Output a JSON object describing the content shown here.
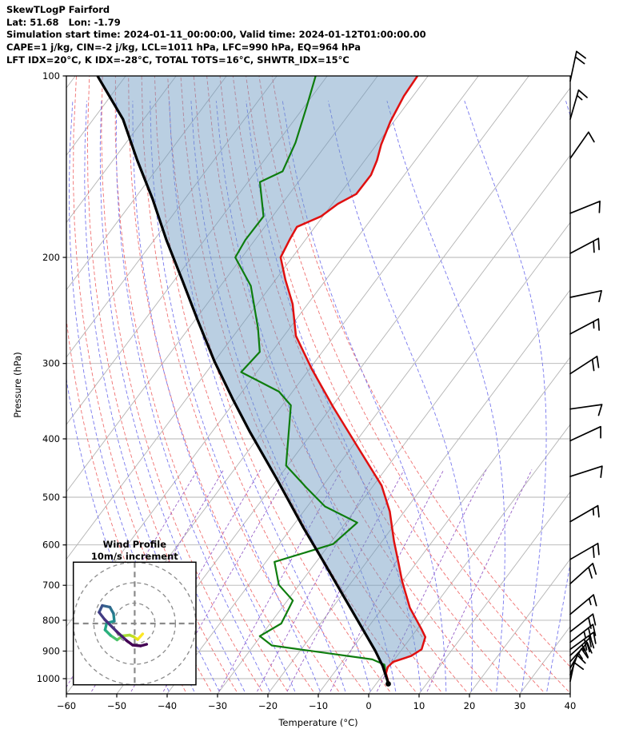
{
  "header": {
    "title": "SkewTLogP Fairford",
    "location_line": "Lat: 51.68   Lon: -1.79",
    "time_line": "Simulation start time: 2024-01-11_00:00:00, Valid time: 2024-01-12T01:00:00.00",
    "cape_line": "CAPE=1 j/kg, CIN=-2 j/kg, LCL=1011 hPa, LFC=990 hPa, EQ=964 hPa",
    "index_line": "LFT IDX=20°C, K IDX=-28°C, TOTAL TOTS=16°C, SHWTR_IDX=15°C"
  },
  "chart_data": {
    "type": "skewt-logp",
    "station": "Fairford",
    "lat": 51.68,
    "lon": -1.79,
    "indices": {
      "CAPE": "1 j/kg",
      "CIN": "-2 j/kg",
      "LCL": "1011 hPa",
      "LFC": "990 hPa",
      "EQ": "964 hPa",
      "LFT_IDX": "20°C",
      "K_IDX": "-28°C",
      "TOTAL_TOTS": "16°C",
      "SHWTR_IDX": "15°C"
    },
    "x_axis": {
      "label": "Temperature (°C)",
      "ticks": [
        -60,
        -50,
        -40,
        -30,
        -20,
        -10,
        0,
        10,
        20,
        30,
        40
      ],
      "range": [
        -60,
        40
      ]
    },
    "y_axis": {
      "label": "Pressure (hPa)",
      "ticks": [
        100,
        200,
        300,
        400,
        500,
        600,
        700,
        800,
        900,
        1000
      ],
      "range": [
        100,
        1050
      ],
      "scale": "log"
    },
    "background_lines": {
      "isotherms_c": {
        "start": -160,
        "end": 40,
        "step": 10
      },
      "dry_adiabats_c_at_1000": {
        "start": -40,
        "end": 40,
        "step": 5
      },
      "moist_adiabats_c_at_1000": {
        "start": -40,
        "end": 40,
        "step": 5
      },
      "mixing_ratio_g_kg": [
        0.01,
        0.02,
        0.05,
        0.1,
        0.3,
        0.6,
        1,
        2,
        4,
        8
      ]
    },
    "temperature_profile": [
      [
        100,
        -82.1
      ],
      [
        108,
        -81.8
      ],
      [
        119,
        -80.7
      ],
      [
        130,
        -79.1
      ],
      [
        138,
        -77.6
      ],
      [
        146,
        -76.6
      ],
      [
        157,
        -76.7
      ],
      [
        163,
        -78.9
      ],
      [
        171,
        -80.4
      ],
      [
        178,
        -83.6
      ],
      [
        186,
        -83.2
      ],
      [
        200,
        -82.3
      ],
      [
        218,
        -78.0
      ],
      [
        239,
        -73.0
      ],
      [
        270,
        -67.6
      ],
      [
        307,
        -59.4
      ],
      [
        355,
        -49.5
      ],
      [
        413,
        -38.8
      ],
      [
        478,
        -28.4
      ],
      [
        528,
        -22.9
      ],
      [
        592,
        -17.6
      ],
      [
        634,
        -14.2
      ],
      [
        689,
        -10.1
      ],
      [
        763,
        -4.6
      ],
      [
        828,
        0.9
      ],
      [
        853,
        2.8
      ],
      [
        894,
        3.9
      ],
      [
        917,
        2.8
      ],
      [
        938,
        0.1
      ],
      [
        957,
        -0.2
      ],
      [
        980,
        0.4
      ],
      [
        1012,
        2.1
      ]
    ],
    "dewpoint_profile": [
      [
        100,
        -102.3
      ],
      [
        113,
        -99.4
      ],
      [
        129,
        -96.4
      ],
      [
        144,
        -94.7
      ],
      [
        150,
        -97.6
      ],
      [
        171,
        -91.8
      ],
      [
        187,
        -91.9
      ],
      [
        200,
        -91.3
      ],
      [
        223,
        -84.0
      ],
      [
        262,
        -76.3
      ],
      [
        287,
        -72.4
      ],
      [
        310,
        -73.1
      ],
      [
        334,
        -62.7
      ],
      [
        352,
        -58.3
      ],
      [
        443,
        -50.3
      ],
      [
        482,
        -43.0
      ],
      [
        518,
        -36.5
      ],
      [
        551,
        -27.7
      ],
      [
        598,
        -29.3
      ],
      [
        640,
        -38.3
      ],
      [
        699,
        -34.0
      ],
      [
        742,
        -28.9
      ],
      [
        810,
        -27.8
      ],
      [
        850,
        -30.2
      ],
      [
        881,
        -26.4
      ],
      [
        929,
        -4.4
      ],
      [
        948,
        -1.2
      ],
      [
        1012,
        1.9
      ]
    ],
    "parcel_profile": [
      [
        100,
        -145.6
      ],
      [
        118,
        -134.1
      ],
      [
        138,
        -125.2
      ],
      [
        160,
        -116.4
      ],
      [
        187,
        -107.6
      ],
      [
        218,
        -98.5
      ],
      [
        254,
        -89.5
      ],
      [
        298,
        -79.9
      ],
      [
        344,
        -70.7
      ],
      [
        390,
        -62.4
      ],
      [
        466,
        -50.2
      ],
      [
        562,
        -37.6
      ],
      [
        634,
        -29.2
      ],
      [
        763,
        -16.4
      ],
      [
        899,
        -5.1
      ],
      [
        952,
        -1.4
      ],
      [
        994,
        1.0
      ],
      [
        1021,
        2.5
      ]
    ],
    "surface_point": {
      "p": 1020,
      "t": 2.4
    },
    "wind_barbs": [
      {
        "p": 102,
        "angle": 78,
        "full": 2,
        "half": 0,
        "len": 38
      },
      {
        "p": 118,
        "angle": 74,
        "full": 1,
        "half": 1,
        "len": 38
      },
      {
        "p": 137,
        "angle": 55,
        "full": 1,
        "half": 0,
        "len": 40
      },
      {
        "p": 169,
        "angle": 22,
        "full": 1,
        "half": 0,
        "len": 40
      },
      {
        "p": 197,
        "angle": 28,
        "full": 2,
        "half": 0,
        "len": 40
      },
      {
        "p": 233,
        "angle": 12,
        "full": 1,
        "half": 0,
        "len": 40
      },
      {
        "p": 268,
        "angle": 28,
        "full": 1,
        "half": 1,
        "len": 40
      },
      {
        "p": 312,
        "angle": 33,
        "full": 2,
        "half": 0,
        "len": 40
      },
      {
        "p": 357,
        "angle": 8,
        "full": 1,
        "half": 0,
        "len": 40
      },
      {
        "p": 403,
        "angle": 25,
        "full": 1,
        "half": 0,
        "len": 42
      },
      {
        "p": 462,
        "angle": 18,
        "full": 1,
        "half": 0,
        "len": 42
      },
      {
        "p": 549,
        "angle": 30,
        "full": 1,
        "half": 1,
        "len": 40
      },
      {
        "p": 634,
        "angle": 30,
        "full": 2,
        "half": 0,
        "len": 40
      },
      {
        "p": 696,
        "angle": 42,
        "full": 2,
        "half": 0,
        "len": 38
      },
      {
        "p": 782,
        "angle": 40,
        "full": 1,
        "half": 1,
        "len": 38
      },
      {
        "p": 836,
        "angle": 38,
        "full": 2,
        "half": 0,
        "len": 36
      },
      {
        "p": 870,
        "angle": 38,
        "full": 2,
        "half": 1,
        "len": 36
      },
      {
        "p": 894,
        "angle": 36,
        "full": 3,
        "half": 0,
        "len": 36
      },
      {
        "p": 915,
        "angle": 42,
        "full": 2,
        "half": 1,
        "len": 34
      },
      {
        "p": 937,
        "angle": 48,
        "full": 2,
        "half": 0,
        "len": 32
      },
      {
        "p": 960,
        "angle": 60,
        "full": 1,
        "half": 1,
        "len": 28
      },
      {
        "p": 985,
        "angle": 70,
        "full": 1,
        "half": 0,
        "len": 26
      },
      {
        "p": 1010,
        "angle": 78,
        "full": 1,
        "half": 0,
        "len": 24
      }
    ],
    "hodograph": {
      "title": "Wind Profile",
      "subtitle": "10m/s increment",
      "ring_interval_ms": 10,
      "path_uv_ms": [
        {
          "u": 4.0,
          "v": -5.2,
          "c": "#fde725"
        },
        {
          "u": 1.5,
          "v": -8.0,
          "c": "#fde725"
        },
        {
          "u": -0.5,
          "v": -6.6,
          "c": "#e5e419"
        },
        {
          "u": -2.5,
          "v": -5.8,
          "c": "#c2df23"
        },
        {
          "u": -6.0,
          "v": -6.2,
          "c": "#a5db36"
        },
        {
          "u": -8.8,
          "v": -8.2,
          "c": "#75d054"
        },
        {
          "u": -12.0,
          "v": -6.0,
          "c": "#4ac16d"
        },
        {
          "u": -14.8,
          "v": -3.2,
          "c": "#2db27d"
        },
        {
          "u": -14.0,
          "v": 0.2,
          "c": "#21a585"
        },
        {
          "u": -10.2,
          "v": 1.2,
          "c": "#1f978b"
        },
        {
          "u": -10.6,
          "v": 5.0,
          "c": "#24878e"
        },
        {
          "u": -12.4,
          "v": 8.2,
          "c": "#2b758e"
        },
        {
          "u": -16.2,
          "v": 9.0,
          "c": "#33638d"
        },
        {
          "u": -17.8,
          "v": 5.6,
          "c": "#3b508b"
        },
        {
          "u": -15.0,
          "v": 2.0,
          "c": "#423d84"
        },
        {
          "u": -9.0,
          "v": -4.0,
          "c": "#46327e"
        },
        {
          "u": -4.0,
          "v": -8.6,
          "c": "#481d6f"
        },
        {
          "u": -1.0,
          "v": -10.8,
          "c": "#440154"
        },
        {
          "u": 3.0,
          "v": -11.2,
          "c": "#440154"
        },
        {
          "u": 6.0,
          "v": -10.4,
          "c": "#440154"
        }
      ]
    },
    "colors": {
      "temperature": "#e01010",
      "dewpoint": "#0e7d0e",
      "parcel": "#000000",
      "shading": "rgba(110,155,195,0.48)",
      "grid": "#b3b3b3",
      "dry_adiabat": "#f07070",
      "moist_adiabat": "#7878ee",
      "mixing_ratio": "#9a63c8",
      "hodo_ring": "#8a8a8a"
    }
  }
}
